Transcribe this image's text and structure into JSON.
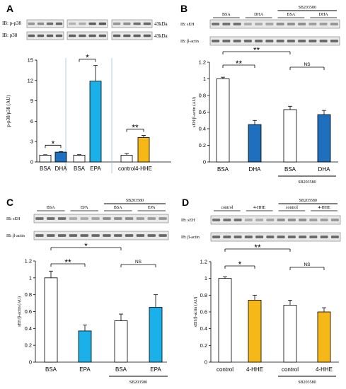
{
  "colors": {
    "white_bar": "#ffffff",
    "dha_bar": "#1f6fbf",
    "epa_bar": "#1ab0ea",
    "hhe_bar": "#f5b816",
    "blot_bg": "#e9e9e9",
    "band": "#505050",
    "divider": "#9dbfe0"
  },
  "chart_data": [
    {
      "panel": "A",
      "type": "bar",
      "ylabel": "p-p38/p38 (AU)",
      "ylim": [
        0,
        15
      ],
      "yticks": [
        "0",
        "3",
        "6",
        "9",
        "12",
        "15"
      ],
      "blot_labels": [
        "IB: p-p38",
        "IB: p38"
      ],
      "kda_labels": [
        "43kDa",
        "43kDa"
      ],
      "groups": [
        {
          "categories": [
            "BSA",
            "DHA"
          ],
          "values": [
            1.0,
            1.45
          ],
          "errors": [
            0.06,
            0.08
          ],
          "colors": [
            "#ffffff",
            "#1f6fbf"
          ],
          "sig": "*"
        },
        {
          "categories": [
            "BSA",
            "EPA"
          ],
          "values": [
            1.0,
            11.9
          ],
          "errors": [
            0.08,
            2.3
          ],
          "colors": [
            "#ffffff",
            "#1ab0ea"
          ],
          "sig": "*"
        },
        {
          "categories": [
            "control",
            "4-HHE"
          ],
          "values": [
            1.0,
            3.6
          ],
          "errors": [
            0.25,
            0.3
          ],
          "colors": [
            "#ffffff",
            "#f5b816"
          ],
          "sig": "**"
        }
      ]
    },
    {
      "panel": "B",
      "type": "bar",
      "ylabel": "sEH/β-actin (AU)",
      "ylim": [
        0,
        1.2
      ],
      "yticks": [
        "0",
        "0.2",
        "0.4",
        "0.6",
        "0.8",
        "1",
        "1.2"
      ],
      "blot_labels": [
        "IB: sEH",
        "IB: β-actin"
      ],
      "blot_header": [
        "BSA",
        "DHA",
        "BSA",
        "DHA"
      ],
      "inhibitor": "SB203580",
      "categories": [
        "BSA",
        "DHA",
        "BSA",
        "DHA"
      ],
      "values": [
        1.0,
        0.45,
        0.63,
        0.57
      ],
      "errors": [
        0.02,
        0.05,
        0.04,
        0.05
      ],
      "colors": [
        "#ffffff",
        "#1f6fbf",
        "#ffffff",
        "#1f6fbf"
      ],
      "brackets": [
        {
          "from": 0,
          "to": 2,
          "label": "**"
        },
        {
          "from": 0,
          "to": 1,
          "label": "**"
        },
        {
          "from": 2,
          "to": 3,
          "label": "NS"
        }
      ]
    },
    {
      "panel": "C",
      "type": "bar",
      "ylabel": "sEH/β-actin (AU)",
      "ylim": [
        0,
        1.2
      ],
      "yticks": [
        "0",
        "0.2",
        "0.4",
        "0.6",
        "0.8",
        "1",
        "1.2"
      ],
      "blot_labels": [
        "IB: sEH",
        "IB: β-actin"
      ],
      "blot_header": [
        "BSA",
        "EPA",
        "BSA",
        "EPA"
      ],
      "inhibitor": "SB203580",
      "categories": [
        "BSA",
        "EPA",
        "BSA",
        "EPA"
      ],
      "values": [
        1.0,
        0.37,
        0.49,
        0.65
      ],
      "errors": [
        0.08,
        0.07,
        0.08,
        0.15
      ],
      "colors": [
        "#ffffff",
        "#1ab0ea",
        "#ffffff",
        "#1ab0ea"
      ],
      "brackets": [
        {
          "from": 0,
          "to": 2,
          "label": "*"
        },
        {
          "from": 0,
          "to": 1,
          "label": "**"
        },
        {
          "from": 2,
          "to": 3,
          "label": "NS"
        }
      ]
    },
    {
      "panel": "D",
      "type": "bar",
      "ylabel": "sEH/β-actin (AU)",
      "ylim": [
        0,
        1.2
      ],
      "yticks": [
        "0",
        "0.2",
        "0.4",
        "0.6",
        "0.8",
        "1",
        "1.2"
      ],
      "blot_labels": [
        "IB: sEH",
        "IB: β-actin"
      ],
      "blot_header": [
        "control",
        "4-HHE",
        "control",
        "4-HHE"
      ],
      "inhibitor": "SB203580",
      "categories": [
        "control",
        "4-HHE",
        "control",
        "4-HHE"
      ],
      "values": [
        1.0,
        0.74,
        0.68,
        0.6
      ],
      "errors": [
        0.02,
        0.06,
        0.06,
        0.05
      ],
      "colors": [
        "#ffffff",
        "#f5b816",
        "#ffffff",
        "#f5b816"
      ],
      "brackets": [
        {
          "from": 0,
          "to": 2,
          "label": "**"
        },
        {
          "from": 0,
          "to": 1,
          "label": "*"
        },
        {
          "from": 2,
          "to": 3,
          "label": "NS"
        }
      ]
    }
  ]
}
